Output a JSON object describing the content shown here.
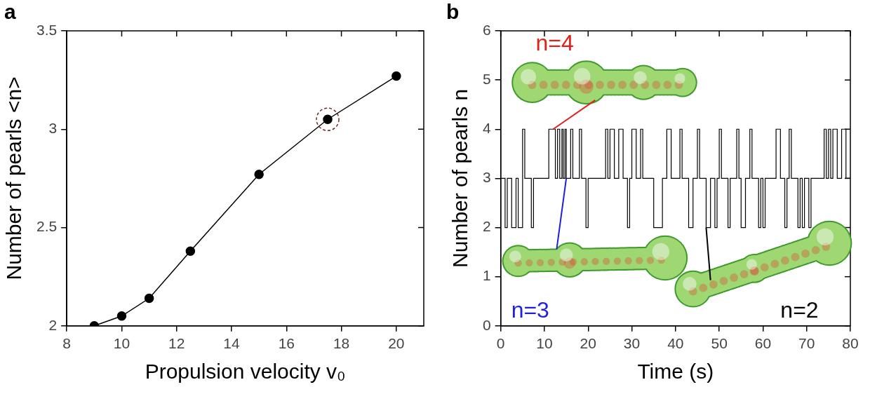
{
  "chart_data": [
    {
      "panel_label": "a",
      "type": "line",
      "x": [
        9,
        10,
        11,
        12.5,
        15,
        17.5,
        20
      ],
      "series": [
        {
          "values": [
            2.0,
            2.05,
            2.14,
            2.38,
            2.77,
            3.05,
            3.27
          ],
          "color": "#000000",
          "marker": "circle"
        },
        {
          "values": [
            null,
            null,
            null,
            null,
            null,
            3.05,
            null
          ],
          "color": "#6b2a2a",
          "marker": "dashed_circle",
          "type": "scatter"
        }
      ],
      "x_label": "Propulsion velocity v₀",
      "y_label": "Number of pearls <n>",
      "xlim": [
        8,
        21
      ],
      "xticks": [
        8,
        10,
        12,
        14,
        16,
        18,
        20
      ],
      "ylim": [
        2,
        3.5
      ],
      "yticks": [
        2,
        2.5,
        3,
        3.5
      ],
      "grid": false
    },
    {
      "panel_label": "b",
      "type": "line",
      "x": [
        0,
        1,
        1.5,
        2.5,
        3.5,
        4,
        5,
        5.5,
        7,
        7.5,
        11,
        12.5,
        13,
        13.5,
        14,
        14.3,
        14.7,
        15,
        16,
        16.5,
        18,
        18.5,
        19.5,
        20,
        24,
        24.5,
        25,
        26,
        27,
        28,
        29,
        29.5,
        30,
        31,
        32,
        32.5,
        35,
        37,
        38,
        39,
        41,
        41.5,
        43,
        44,
        45,
        45.5,
        47,
        48,
        49,
        49.5,
        50,
        50.5,
        52,
        52.5,
        54,
        54.5,
        55,
        56,
        57,
        57.5,
        59,
        59.5,
        60,
        60.5,
        63,
        64,
        65,
        65.5,
        66,
        66.5,
        68,
        68.5,
        69,
        69.5,
        70.5,
        71,
        74,
        74.5,
        75,
        75.5,
        76,
        77,
        78,
        79,
        80
      ],
      "series": [
        {
          "values": [
            3,
            2,
            3,
            2,
            3,
            2,
            4,
            3,
            2,
            3,
            4,
            3,
            4,
            3,
            4,
            3,
            4,
            3,
            4,
            3,
            4,
            3,
            2,
            3,
            4,
            3,
            4,
            3,
            4,
            3,
            2,
            3,
            4,
            3,
            4,
            3,
            2,
            3,
            4,
            3,
            4,
            3,
            2,
            3,
            4,
            3,
            2,
            3,
            2,
            3,
            4,
            3,
            2,
            3,
            4,
            3,
            2,
            3,
            4,
            3,
            2,
            3,
            2,
            3,
            4,
            3,
            2,
            3,
            4,
            3,
            2,
            3,
            2,
            3,
            2,
            3,
            4,
            3,
            4,
            3,
            4,
            3,
            4,
            3,
            3
          ],
          "color": "#000000",
          "marker": "none",
          "line_style": "step"
        }
      ],
      "x_label": "Time (s)",
      "y_label": "Number of pearls n",
      "xlim": [
        0,
        80
      ],
      "xticks": [
        0,
        10,
        20,
        30,
        40,
        50,
        60,
        70,
        80
      ],
      "ylim": [
        0,
        6
      ],
      "yticks": [
        0,
        1,
        2,
        3,
        4,
        5,
        6
      ],
      "grid": false,
      "annotations": [
        {
          "text": "n=4",
          "color": "#e0201b",
          "x": 12,
          "y": 4
        },
        {
          "text": "n=3",
          "color": "#1f1fe0",
          "x": 15,
          "y": 3
        },
        {
          "text": "n=2",
          "color": "#000000",
          "x": 47,
          "y": 2
        }
      ]
    }
  ]
}
